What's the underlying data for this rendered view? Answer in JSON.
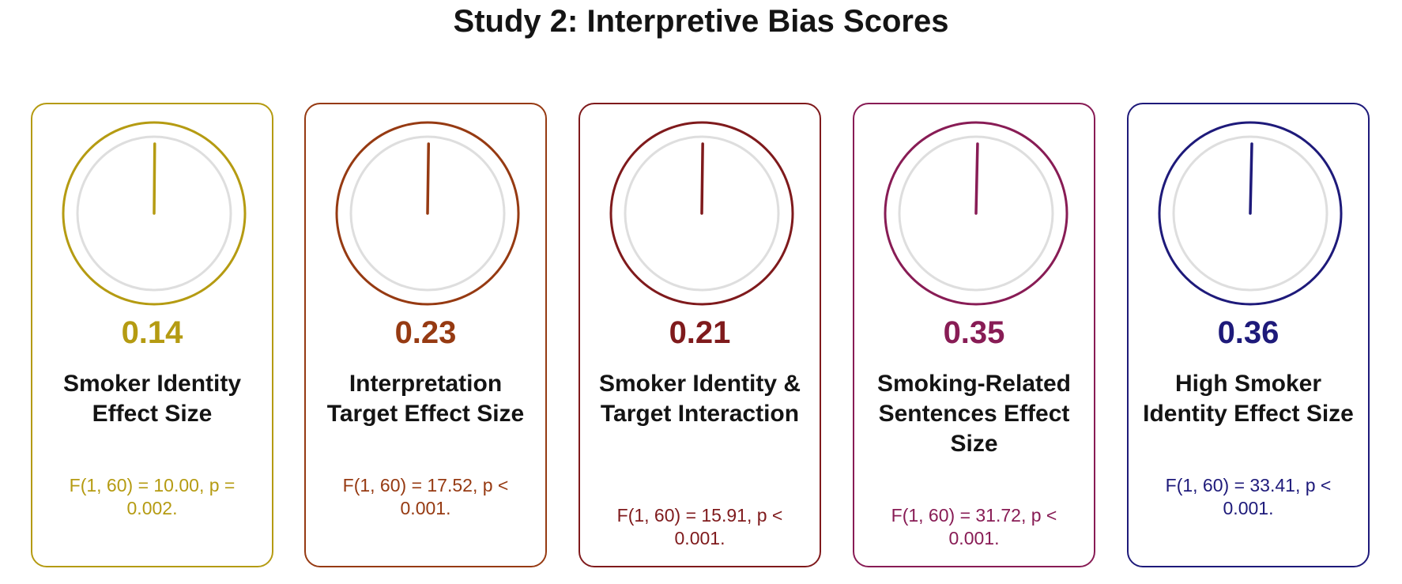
{
  "title": "Study 2: Interpretive Bias Scores",
  "cards": [
    {
      "value": "0.14",
      "value_numeric": 0.14,
      "label": "Smoker Identity Effect Size",
      "stat": "F(1, 60) = 10.00, p = 0.002.",
      "color": "#b59b12"
    },
    {
      "value": "0.23",
      "value_numeric": 0.23,
      "label": "Interpretation Target Effect Size",
      "stat": "F(1, 60) = 17.52, p < 0.001.",
      "color": "#963a12"
    },
    {
      "value": "0.21",
      "value_numeric": 0.21,
      "label": "Smoker Identity & Target Interaction",
      "stat": "F(1, 60) = 15.91, p < 0.001.",
      "color": "#7f1a1c"
    },
    {
      "value": "0.35",
      "value_numeric": 0.35,
      "label": "Smoking-Related Sentences Effect Size",
      "stat": "F(1, 60) = 31.72, p < 0.001.",
      "color": "#881c55"
    },
    {
      "value": "0.36",
      "value_numeric": 0.36,
      "label": "High Smoker Identity Effect Size",
      "stat": "F(1, 60) = 33.41, p < 0.001.",
      "color": "#1e1a7a"
    }
  ]
}
